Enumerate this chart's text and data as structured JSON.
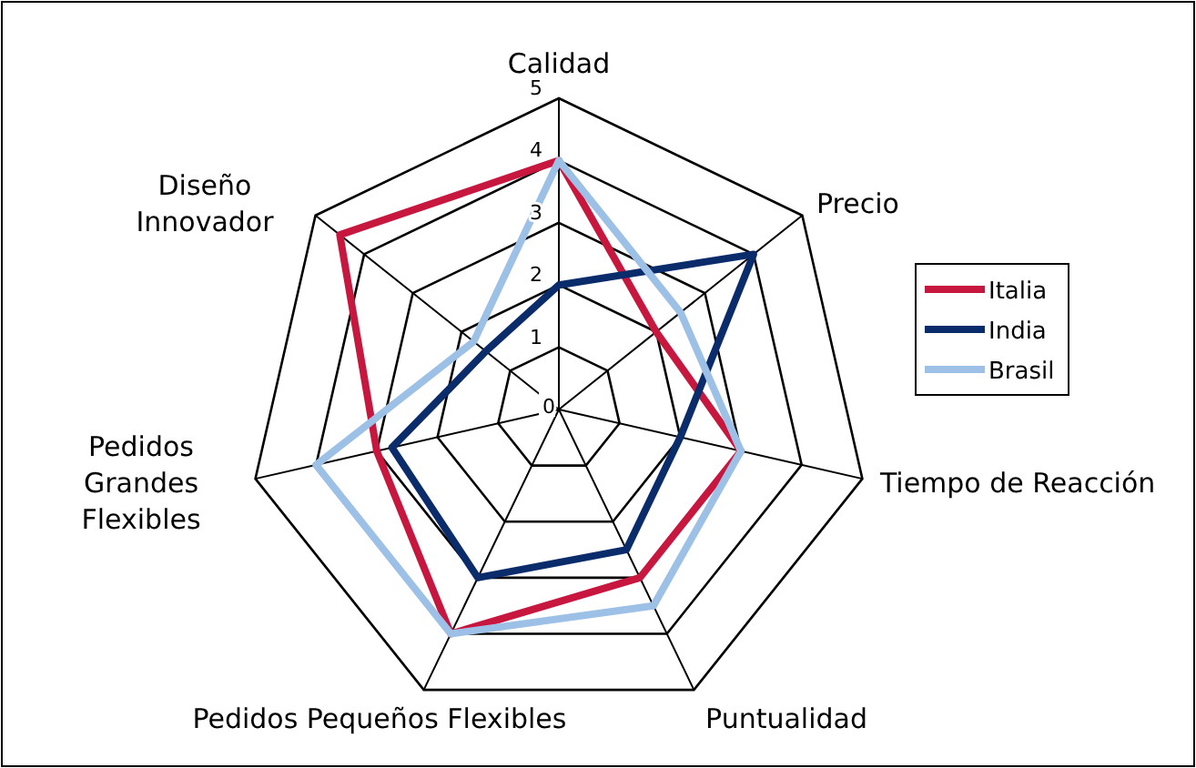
{
  "chart_data": {
    "type": "radar",
    "categories": [
      "Calidad",
      "Precio",
      "Tiempo de Reacción",
      "Puntualidad",
      "Pedidos Pequeños Flexibles",
      "Pedidos Grandes Flexibles",
      "Diseño Innovador"
    ],
    "series": [
      {
        "name": "Italia",
        "color": "#c8173f",
        "values": [
          4,
          2,
          3,
          3,
          4,
          3,
          4.5
        ]
      },
      {
        "name": "India",
        "color": "#0b2c6b",
        "values": [
          2,
          4,
          2,
          2.5,
          3,
          2.75,
          1.5
        ]
      },
      {
        "name": "Brasil",
        "color": "#9dc0e6",
        "values": [
          4,
          2.5,
          3,
          3.5,
          4,
          4,
          1.75
        ]
      }
    ],
    "ylim": [
      0,
      5
    ],
    "yticks": [
      0,
      1,
      2,
      3,
      4,
      5
    ],
    "legend": "right",
    "grid": true
  }
}
